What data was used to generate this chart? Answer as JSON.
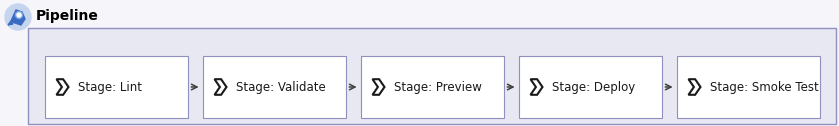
{
  "title": "Pipeline",
  "stages": [
    "Stage: Lint",
    "Stage: Validate",
    "Stage: Preview",
    "Stage: Deploy",
    "Stage: Smoke Test"
  ],
  "fig_bg_color": "#f5f5fa",
  "panel_bg_color": "#e8e8f2",
  "box_fill_color": "#ffffff",
  "box_edge_color": "#9090c0",
  "arrow_color": "#404040",
  "title_color": "#000000",
  "text_color": "#1a1a1a",
  "chevron_color": "#1a1a1a",
  "outer_border_color": "#9090c0",
  "title_fontsize": 10,
  "stage_fontsize": 8.5,
  "icon_blue_dark": "#3a6bc4",
  "icon_blue_light": "#7aaae0",
  "icon_bg": "#c5d5ee"
}
